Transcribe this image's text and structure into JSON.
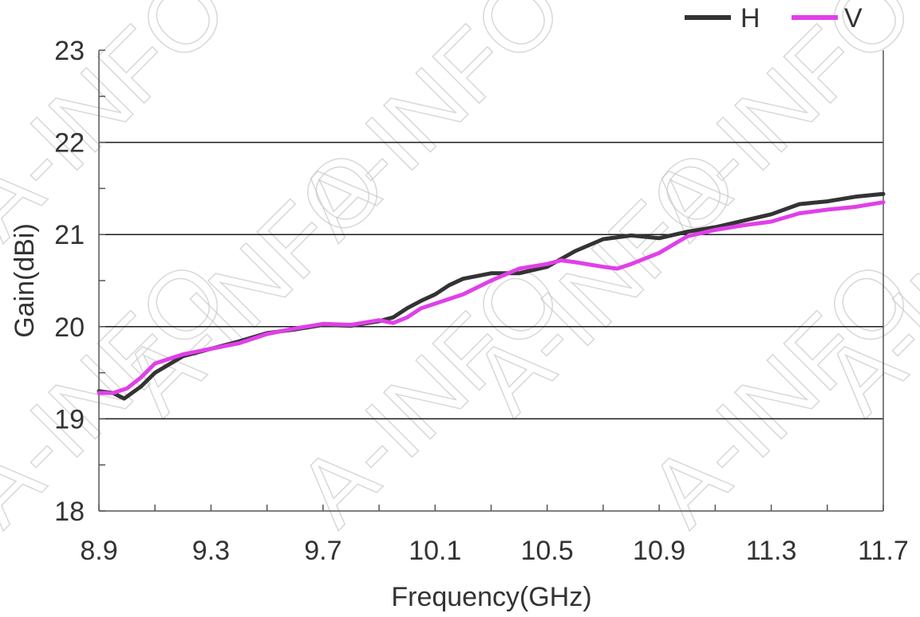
{
  "chart_data": {
    "type": "line",
    "title": "",
    "xlabel": "Frequency(GHz)",
    "ylabel": "Gain(dBi)",
    "xlim": [
      8.9,
      11.7
    ],
    "ylim": [
      18,
      23
    ],
    "xticks": [
      "8.9",
      "9.3",
      "9.7",
      "10.1",
      "10.5",
      "10.9",
      "11.3",
      "11.7"
    ],
    "yticks": [
      "18",
      "19",
      "20",
      "21",
      "22",
      "23"
    ],
    "grid": "horizontal major lines",
    "legend_position": "top-right",
    "watermark": "A-INFO",
    "series": [
      {
        "name": "H",
        "color": "#333333",
        "x": [
          8.9,
          8.95,
          8.99,
          9.05,
          9.1,
          9.2,
          9.3,
          9.4,
          9.5,
          9.6,
          9.7,
          9.8,
          9.9,
          9.95,
          10.0,
          10.05,
          10.1,
          10.15,
          10.2,
          10.3,
          10.4,
          10.5,
          10.6,
          10.7,
          10.8,
          10.9,
          11.0,
          11.1,
          11.2,
          11.3,
          11.4,
          11.5,
          11.6,
          11.7
        ],
        "y": [
          19.3,
          19.28,
          19.22,
          19.35,
          19.5,
          19.68,
          19.76,
          19.84,
          19.93,
          19.97,
          20.02,
          20.01,
          20.06,
          20.1,
          20.2,
          20.28,
          20.35,
          20.45,
          20.52,
          20.58,
          20.58,
          20.65,
          20.82,
          20.95,
          20.99,
          20.96,
          21.03,
          21.08,
          21.15,
          21.22,
          21.33,
          21.36,
          21.41,
          21.44
        ]
      },
      {
        "name": "V",
        "color": "#e040e8",
        "x": [
          8.9,
          8.95,
          9.0,
          9.05,
          9.1,
          9.2,
          9.3,
          9.4,
          9.5,
          9.6,
          9.7,
          9.8,
          9.9,
          9.95,
          10.0,
          10.05,
          10.1,
          10.2,
          10.3,
          10.4,
          10.5,
          10.55,
          10.6,
          10.7,
          10.75,
          10.8,
          10.9,
          11.0,
          11.1,
          11.2,
          11.3,
          11.4,
          11.5,
          11.6,
          11.7
        ],
        "y": [
          19.28,
          19.28,
          19.33,
          19.45,
          19.6,
          19.7,
          19.76,
          19.82,
          19.92,
          19.98,
          20.03,
          20.02,
          20.07,
          20.04,
          20.1,
          20.2,
          20.25,
          20.35,
          20.5,
          20.63,
          20.68,
          20.72,
          20.7,
          20.65,
          20.63,
          20.68,
          20.8,
          20.98,
          21.05,
          21.1,
          21.14,
          21.23,
          21.27,
          21.3,
          21.35
        ]
      }
    ]
  }
}
